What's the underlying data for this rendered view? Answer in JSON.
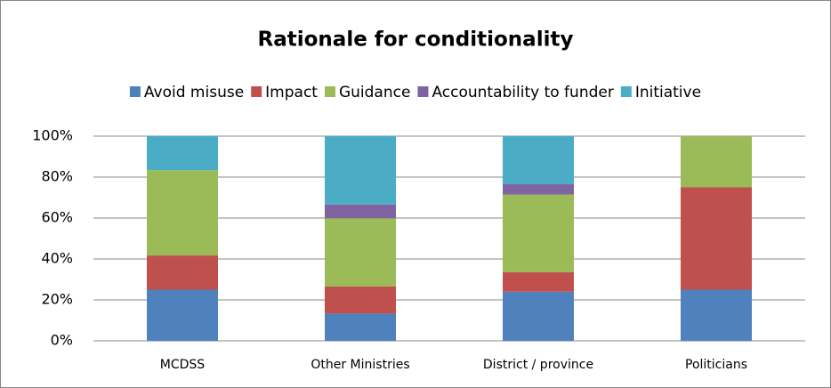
{
  "chart_data": {
    "type": "stacked_bar",
    "title": "Rationale for conditionality",
    "categories": [
      "MCDSS",
      "Other Ministries",
      "District / province",
      "Politicians"
    ],
    "series": [
      {
        "name": "Avoid misuse",
        "color": "#4f81bd",
        "values": [
          25,
          13.3,
          24,
          25
        ]
      },
      {
        "name": "Impact",
        "color": "#c0504d",
        "values": [
          16.7,
          13.3,
          9.5,
          50
        ]
      },
      {
        "name": "Guidance",
        "color": "#9bbb59",
        "values": [
          41.7,
          33.3,
          38,
          25
        ]
      },
      {
        "name": "Accountability to funder",
        "color": "#8064a2",
        "values": [
          0,
          6.7,
          5,
          0
        ]
      },
      {
        "name": "Initiative",
        "color": "#4bacc6",
        "values": [
          16.6,
          33.4,
          23.5,
          0
        ]
      }
    ],
    "ylim": [
      0,
      100
    ],
    "yticks": [
      {
        "value": 0,
        "label": "0%"
      },
      {
        "value": 20,
        "label": "20%"
      },
      {
        "value": 40,
        "label": "40%"
      },
      {
        "value": 60,
        "label": "60%"
      },
      {
        "value": 80,
        "label": "80%"
      },
      {
        "value": 100,
        "label": "100%"
      }
    ],
    "grid": true,
    "legend": "top"
  }
}
